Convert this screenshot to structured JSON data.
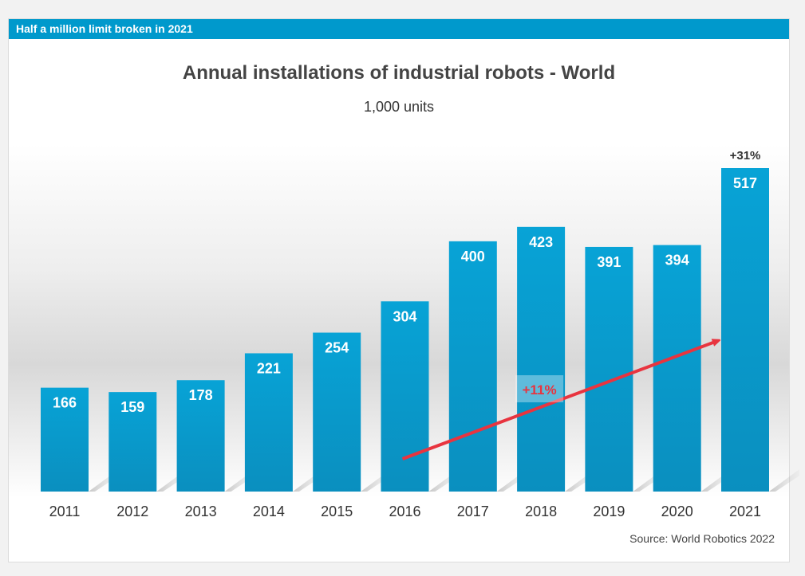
{
  "banner": "Half a million limit broken in 2021",
  "chart_data": {
    "type": "bar",
    "title": "Annual installations of industrial robots - World",
    "subtitle": "1,000 units",
    "categories": [
      "2011",
      "2012",
      "2013",
      "2014",
      "2015",
      "2016",
      "2017",
      "2018",
      "2019",
      "2020",
      "2021"
    ],
    "values": [
      166,
      159,
      178,
      221,
      254,
      304,
      400,
      423,
      391,
      394,
      517
    ],
    "ylim": [
      0,
      517
    ],
    "grid": false,
    "legend": "none",
    "annotations": [
      {
        "text": "+31%",
        "anchor": "2021"
      },
      {
        "text": "+11%",
        "anchor": "2018",
        "style": "trend arrow from 2016 to 2021"
      }
    ],
    "colors": {
      "bar": "#0099cc",
      "bar_dark": "#0085b3",
      "arrow": "#e8343f",
      "banner": "#0099cc"
    }
  },
  "source": "Source: World Robotics 2022"
}
